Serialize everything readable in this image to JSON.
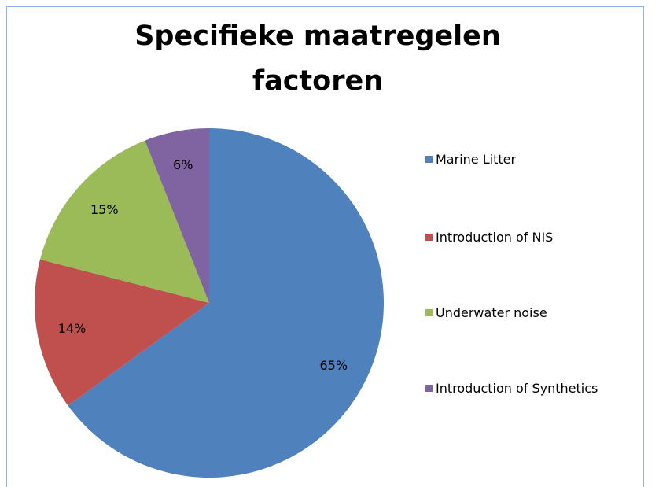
{
  "chart_data": {
    "type": "pie",
    "title": "Specifieke maatregelen factoren",
    "categories": [
      "Marine Litter",
      "Introduction of NIS",
      "Underwater noise",
      "Introduction of Synthetics"
    ],
    "values": [
      65,
      14,
      15,
      6
    ],
    "value_labels": [
      "65%",
      "14%",
      "15%",
      "6%"
    ],
    "colors": [
      "#4f81bd",
      "#c0504d",
      "#9bbb59",
      "#8064a2"
    ],
    "legend": "right"
  }
}
